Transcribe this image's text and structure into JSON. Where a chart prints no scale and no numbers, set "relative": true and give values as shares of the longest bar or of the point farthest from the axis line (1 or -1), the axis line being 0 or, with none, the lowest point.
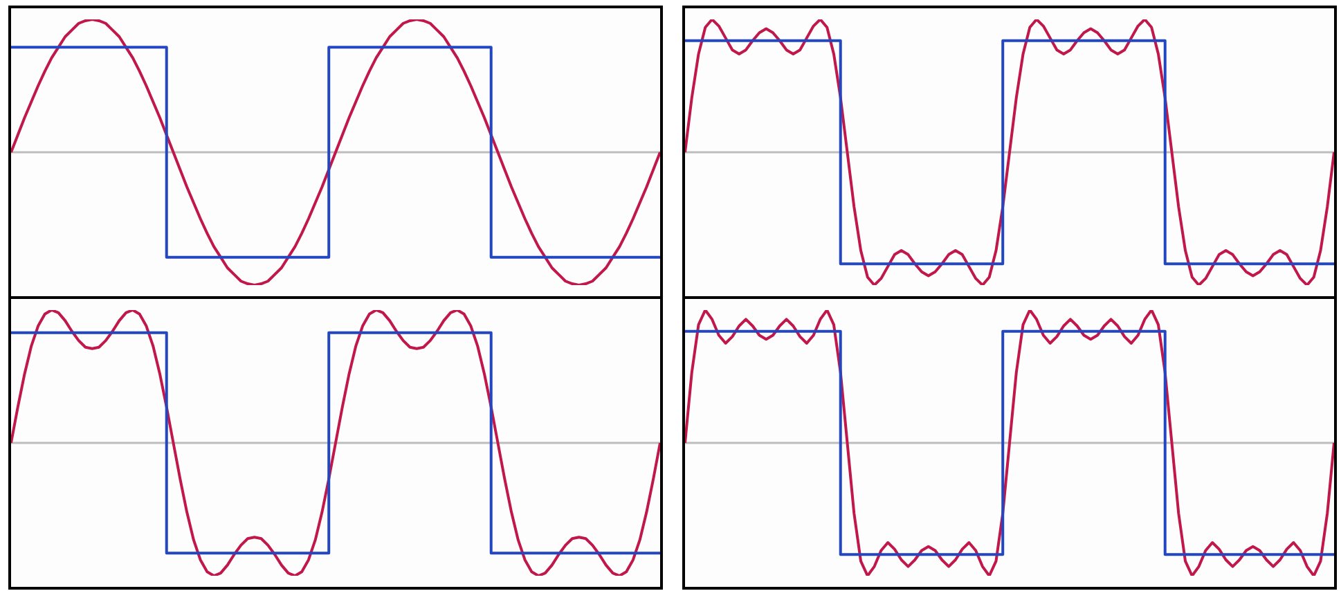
{
  "chart_data": [
    {
      "type": "line",
      "relative": true,
      "categories": [
        null,
        null,
        null,
        null,
        null,
        null,
        null,
        null,
        null,
        null,
        null,
        null,
        null,
        null,
        null,
        null,
        null,
        null,
        null,
        null,
        null,
        null,
        null,
        null,
        null,
        null,
        null,
        null,
        null,
        null,
        null,
        null,
        null,
        null,
        null,
        null,
        null,
        null,
        null,
        null,
        null,
        null,
        null,
        null,
        null,
        null,
        null,
        null,
        null,
        null,
        null,
        null,
        null,
        null,
        null,
        null,
        null,
        null,
        null,
        null,
        null,
        null,
        null,
        null,
        null,
        null,
        null,
        null,
        null,
        null,
        null,
        null,
        null,
        null,
        null,
        null,
        null,
        null,
        null,
        null,
        null,
        null,
        null,
        null,
        null,
        null,
        null,
        null,
        null,
        null,
        null,
        null,
        null,
        null,
        null,
        null,
        null
      ],
      "ref_lines": [
        {
          "axis": "y",
          "value": 0,
          "color": "#bdbdbd"
        }
      ],
      "series": [
        {
          "type": "step",
          "color": "#2347c1",
          "values": [
            0.79,
            0.79,
            0.79,
            0.79,
            0.79,
            0.79,
            0.79,
            0.79,
            0.79,
            0.79,
            0.79,
            0.79,
            0.79,
            0.79,
            0.79,
            0.79,
            0.79,
            0.79,
            0.79,
            0.79,
            0.79,
            0.79,
            0.79,
            0.79,
            -0.79,
            -0.79,
            -0.79,
            -0.79,
            -0.79,
            -0.79,
            -0.79,
            -0.79,
            -0.79,
            -0.79,
            -0.79,
            -0.79,
            -0.79,
            -0.79,
            -0.79,
            -0.79,
            -0.79,
            -0.79,
            -0.79,
            -0.79,
            -0.79,
            -0.79,
            -0.79,
            -0.79,
            0.79,
            0.79,
            0.79,
            0.79,
            0.79,
            0.79,
            0.79,
            0.79,
            0.79,
            0.79,
            0.79,
            0.79,
            0.79,
            0.79,
            0.79,
            0.79,
            0.79,
            0.79,
            0.79,
            0.79,
            0.79,
            0.79,
            0.79,
            0.79,
            -0.79,
            -0.79,
            -0.79,
            -0.79,
            -0.79,
            -0.79,
            -0.79,
            -0.79,
            -0.79,
            -0.79,
            -0.79,
            -0.79,
            -0.79,
            -0.79,
            -0.79,
            -0.79,
            -0.79,
            -0.79,
            -0.79,
            -0.79,
            -0.79,
            -0.79,
            -0.79,
            -0.79,
            -0.79
          ]
        },
        {
          "type": "line",
          "color": "#c0184a",
          "values": [
            0,
            0.13,
            0.26,
            0.38,
            0.5,
            0.61,
            0.71,
            0.79,
            0.87,
            0.92,
            0.97,
            0.99,
            1,
            0.99,
            0.97,
            0.92,
            0.87,
            0.79,
            0.71,
            0.61,
            0.5,
            0.38,
            0.26,
            0.13,
            0,
            -0.13,
            -0.26,
            -0.38,
            -0.5,
            -0.61,
            -0.71,
            -0.79,
            -0.87,
            -0.92,
            -0.97,
            -0.99,
            -1,
            -0.99,
            -0.97,
            -0.92,
            -0.87,
            -0.79,
            -0.71,
            -0.61,
            -0.5,
            -0.38,
            -0.26,
            -0.13,
            0,
            0.13,
            0.26,
            0.38,
            0.5,
            0.61,
            0.71,
            0.79,
            0.87,
            0.92,
            0.97,
            0.99,
            1,
            0.99,
            0.97,
            0.92,
            0.87,
            0.79,
            0.71,
            0.61,
            0.5,
            0.38,
            0.26,
            0.13,
            0,
            -0.13,
            -0.26,
            -0.38,
            -0.5,
            -0.61,
            -0.71,
            -0.79,
            -0.87,
            -0.92,
            -0.97,
            -0.99,
            -1,
            -0.99,
            -0.97,
            -0.92,
            -0.87,
            -0.79,
            -0.71,
            -0.61,
            -0.5,
            -0.38,
            -0.26,
            -0.13,
            0
          ]
        }
      ]
    },
    {
      "type": "line",
      "relative": true,
      "categories": [
        null,
        null,
        null,
        null,
        null,
        null,
        null,
        null,
        null,
        null,
        null,
        null,
        null,
        null,
        null,
        null,
        null,
        null,
        null,
        null,
        null,
        null,
        null,
        null,
        null,
        null,
        null,
        null,
        null,
        null,
        null,
        null,
        null,
        null,
        null,
        null,
        null,
        null,
        null,
        null,
        null,
        null,
        null,
        null,
        null,
        null,
        null,
        null,
        null,
        null,
        null,
        null,
        null,
        null,
        null,
        null,
        null,
        null,
        null,
        null,
        null,
        null,
        null,
        null,
        null,
        null,
        null,
        null,
        null,
        null,
        null,
        null,
        null,
        null,
        null,
        null,
        null,
        null,
        null,
        null,
        null,
        null,
        null,
        null,
        null,
        null,
        null,
        null,
        null,
        null,
        null,
        null,
        null,
        null,
        null,
        null,
        null
      ],
      "ref_lines": [
        {
          "axis": "y",
          "value": 0,
          "color": "#bdbdbd"
        }
      ],
      "series": [
        {
          "type": "step",
          "color": "#2347c1",
          "values": [
            0.84,
            0.84,
            0.84,
            0.84,
            0.84,
            0.84,
            0.84,
            0.84,
            0.84,
            0.84,
            0.84,
            0.84,
            0.84,
            0.84,
            0.84,
            0.84,
            0.84,
            0.84,
            0.84,
            0.84,
            0.84,
            0.84,
            0.84,
            0.84,
            -0.84,
            -0.84,
            -0.84,
            -0.84,
            -0.84,
            -0.84,
            -0.84,
            -0.84,
            -0.84,
            -0.84,
            -0.84,
            -0.84,
            -0.84,
            -0.84,
            -0.84,
            -0.84,
            -0.84,
            -0.84,
            -0.84,
            -0.84,
            -0.84,
            -0.84,
            -0.84,
            -0.84,
            0.84,
            0.84,
            0.84,
            0.84,
            0.84,
            0.84,
            0.84,
            0.84,
            0.84,
            0.84,
            0.84,
            0.84,
            0.84,
            0.84,
            0.84,
            0.84,
            0.84,
            0.84,
            0.84,
            0.84,
            0.84,
            0.84,
            0.84,
            0.84,
            -0.84,
            -0.84,
            -0.84,
            -0.84,
            -0.84,
            -0.84,
            -0.84,
            -0.84,
            -0.84,
            -0.84,
            -0.84,
            -0.84,
            -0.84,
            -0.84,
            -0.84,
            -0.84,
            -0.84,
            -0.84,
            -0.84,
            -0.84,
            -0.84,
            -0.84,
            -0.84,
            -0.84,
            -0.84
          ]
        },
        {
          "type": "line",
          "color": "#c0184a",
          "values": [
            0,
            0.41,
            0.74,
            0.94,
            1,
            0.95,
            0.86,
            0.77,
            0.74,
            0.77,
            0.84,
            0.9,
            0.93,
            0.9,
            0.84,
            0.77,
            0.74,
            0.77,
            0.86,
            0.95,
            1,
            0.94,
            0.74,
            0.41,
            0,
            -0.41,
            -0.74,
            -0.94,
            -1,
            -0.95,
            -0.86,
            -0.77,
            -0.74,
            -0.77,
            -0.84,
            -0.9,
            -0.93,
            -0.9,
            -0.84,
            -0.77,
            -0.74,
            -0.77,
            -0.86,
            -0.95,
            -1,
            -0.94,
            -0.74,
            -0.41,
            0,
            0.41,
            0.74,
            0.94,
            1,
            0.95,
            0.86,
            0.77,
            0.74,
            0.77,
            0.84,
            0.9,
            0.93,
            0.9,
            0.84,
            0.77,
            0.74,
            0.77,
            0.86,
            0.95,
            1,
            0.94,
            0.74,
            0.41,
            0,
            -0.41,
            -0.74,
            -0.94,
            -1,
            -0.95,
            -0.86,
            -0.77,
            -0.74,
            -0.77,
            -0.84,
            -0.9,
            -0.93,
            -0.9,
            -0.84,
            -0.77,
            -0.74,
            -0.77,
            -0.86,
            -0.95,
            -1,
            -0.94,
            -0.74,
            -0.41,
            0
          ]
        }
      ]
    },
    {
      "type": "line",
      "relative": true,
      "categories": [
        null,
        null,
        null,
        null,
        null,
        null,
        null,
        null,
        null,
        null,
        null,
        null,
        null,
        null,
        null,
        null,
        null,
        null,
        null,
        null,
        null,
        null,
        null,
        null,
        null,
        null,
        null,
        null,
        null,
        null,
        null,
        null,
        null,
        null,
        null,
        null,
        null,
        null,
        null,
        null,
        null,
        null,
        null,
        null,
        null,
        null,
        null,
        null,
        null,
        null,
        null,
        null,
        null,
        null,
        null,
        null,
        null,
        null,
        null,
        null,
        null,
        null,
        null,
        null,
        null,
        null,
        null,
        null,
        null,
        null,
        null,
        null,
        null,
        null,
        null,
        null,
        null,
        null,
        null,
        null,
        null,
        null,
        null,
        null,
        null,
        null,
        null,
        null,
        null,
        null,
        null,
        null,
        null,
        null,
        null,
        null,
        null
      ],
      "ref_lines": [
        {
          "axis": "y",
          "value": 0,
          "color": "#bdbdbd"
        }
      ],
      "series": [
        {
          "type": "step",
          "color": "#2347c1",
          "values": [
            0.83,
            0.83,
            0.83,
            0.83,
            0.83,
            0.83,
            0.83,
            0.83,
            0.83,
            0.83,
            0.83,
            0.83,
            0.83,
            0.83,
            0.83,
            0.83,
            0.83,
            0.83,
            0.83,
            0.83,
            0.83,
            0.83,
            0.83,
            0.83,
            -0.83,
            -0.83,
            -0.83,
            -0.83,
            -0.83,
            -0.83,
            -0.83,
            -0.83,
            -0.83,
            -0.83,
            -0.83,
            -0.83,
            -0.83,
            -0.83,
            -0.83,
            -0.83,
            -0.83,
            -0.83,
            -0.83,
            -0.83,
            -0.83,
            -0.83,
            -0.83,
            -0.83,
            0.83,
            0.83,
            0.83,
            0.83,
            0.83,
            0.83,
            0.83,
            0.83,
            0.83,
            0.83,
            0.83,
            0.83,
            0.83,
            0.83,
            0.83,
            0.83,
            0.83,
            0.83,
            0.83,
            0.83,
            0.83,
            0.83,
            0.83,
            0.83,
            -0.83,
            -0.83,
            -0.83,
            -0.83,
            -0.83,
            -0.83,
            -0.83,
            -0.83,
            -0.83,
            -0.83,
            -0.83,
            -0.83,
            -0.83,
            -0.83,
            -0.83,
            -0.83,
            -0.83,
            -0.83,
            -0.83,
            -0.83,
            -0.83,
            -0.83,
            -0.83,
            -0.83,
            -0.83
          ]
        },
        {
          "type": "line",
          "color": "#c0184a",
          "values": [
            0,
            0.27,
            0.52,
            0.73,
            0.88,
            0.97,
            1,
            0.98,
            0.92,
            0.84,
            0.77,
            0.72,
            0.71,
            0.72,
            0.77,
            0.84,
            0.92,
            0.98,
            1,
            0.97,
            0.88,
            0.73,
            0.52,
            0.27,
            0,
            -0.27,
            -0.52,
            -0.73,
            -0.88,
            -0.97,
            -1,
            -0.98,
            -0.92,
            -0.84,
            -0.77,
            -0.72,
            -0.71,
            -0.72,
            -0.77,
            -0.84,
            -0.92,
            -0.98,
            -1,
            -0.97,
            -0.88,
            -0.73,
            -0.52,
            -0.27,
            0,
            0.27,
            0.52,
            0.73,
            0.88,
            0.97,
            1,
            0.98,
            0.92,
            0.84,
            0.77,
            0.72,
            0.71,
            0.72,
            0.77,
            0.84,
            0.92,
            0.98,
            1,
            0.97,
            0.88,
            0.73,
            0.52,
            0.27,
            0,
            -0.27,
            -0.52,
            -0.73,
            -0.88,
            -0.97,
            -1,
            -0.98,
            -0.92,
            -0.84,
            -0.77,
            -0.72,
            -0.71,
            -0.72,
            -0.77,
            -0.84,
            -0.92,
            -0.98,
            -1,
            -0.97,
            -0.88,
            -0.73,
            -0.52,
            -0.27,
            0
          ]
        }
      ]
    },
    {
      "type": "line",
      "relative": true,
      "categories": [
        null,
        null,
        null,
        null,
        null,
        null,
        null,
        null,
        null,
        null,
        null,
        null,
        null,
        null,
        null,
        null,
        null,
        null,
        null,
        null,
        null,
        null,
        null,
        null,
        null,
        null,
        null,
        null,
        null,
        null,
        null,
        null,
        null,
        null,
        null,
        null,
        null,
        null,
        null,
        null,
        null,
        null,
        null,
        null,
        null,
        null,
        null,
        null,
        null,
        null,
        null,
        null,
        null,
        null,
        null,
        null,
        null,
        null,
        null,
        null,
        null,
        null,
        null,
        null,
        null,
        null,
        null,
        null,
        null,
        null,
        null,
        null,
        null,
        null,
        null,
        null,
        null,
        null,
        null,
        null,
        null,
        null,
        null,
        null,
        null,
        null,
        null,
        null,
        null,
        null,
        null,
        null,
        null,
        null,
        null,
        null,
        null
      ],
      "ref_lines": [
        {
          "axis": "y",
          "value": 0,
          "color": "#bdbdbd"
        }
      ],
      "series": [
        {
          "type": "step",
          "color": "#2347c1",
          "values": [
            0.84,
            0.84,
            0.84,
            0.84,
            0.84,
            0.84,
            0.84,
            0.84,
            0.84,
            0.84,
            0.84,
            0.84,
            0.84,
            0.84,
            0.84,
            0.84,
            0.84,
            0.84,
            0.84,
            0.84,
            0.84,
            0.84,
            0.84,
            0.84,
            -0.84,
            -0.84,
            -0.84,
            -0.84,
            -0.84,
            -0.84,
            -0.84,
            -0.84,
            -0.84,
            -0.84,
            -0.84,
            -0.84,
            -0.84,
            -0.84,
            -0.84,
            -0.84,
            -0.84,
            -0.84,
            -0.84,
            -0.84,
            -0.84,
            -0.84,
            -0.84,
            -0.84,
            0.84,
            0.84,
            0.84,
            0.84,
            0.84,
            0.84,
            0.84,
            0.84,
            0.84,
            0.84,
            0.84,
            0.84,
            0.84,
            0.84,
            0.84,
            0.84,
            0.84,
            0.84,
            0.84,
            0.84,
            0.84,
            0.84,
            0.84,
            0.84,
            -0.84,
            -0.84,
            -0.84,
            -0.84,
            -0.84,
            -0.84,
            -0.84,
            -0.84,
            -0.84,
            -0.84,
            -0.84,
            -0.84,
            -0.84,
            -0.84,
            -0.84,
            -0.84,
            -0.84,
            -0.84,
            -0.84,
            -0.84,
            -0.84,
            -0.84,
            -0.84,
            -0.84,
            -0.84
          ]
        },
        {
          "type": "line",
          "color": "#c0184a",
          "values": [
            0,
            0.53,
            0.89,
            1,
            0.93,
            0.81,
            0.75,
            0.8,
            0.88,
            0.93,
            0.88,
            0.81,
            0.78,
            0.81,
            0.88,
            0.93,
            0.88,
            0.8,
            0.75,
            0.81,
            0.93,
            1,
            0.89,
            0.53,
            0,
            -0.53,
            -0.89,
            -1,
            -0.93,
            -0.81,
            -0.75,
            -0.8,
            -0.88,
            -0.93,
            -0.88,
            -0.81,
            -0.78,
            -0.81,
            -0.88,
            -0.93,
            -0.88,
            -0.8,
            -0.75,
            -0.81,
            -0.93,
            -1,
            -0.89,
            -0.53,
            0,
            0.53,
            0.89,
            1,
            0.93,
            0.81,
            0.75,
            0.8,
            0.88,
            0.93,
            0.88,
            0.81,
            0.78,
            0.81,
            0.88,
            0.93,
            0.88,
            0.8,
            0.75,
            0.81,
            0.93,
            1,
            0.89,
            0.53,
            0,
            -0.53,
            -0.89,
            -1,
            -0.93,
            -0.81,
            -0.75,
            -0.8,
            -0.88,
            -0.93,
            -0.88,
            -0.81,
            -0.78,
            -0.81,
            -0.88,
            -0.93,
            -0.88,
            -0.8,
            -0.75,
            -0.81,
            -0.93,
            -1,
            -0.89,
            -0.53,
            0
          ]
        }
      ]
    }
  ]
}
